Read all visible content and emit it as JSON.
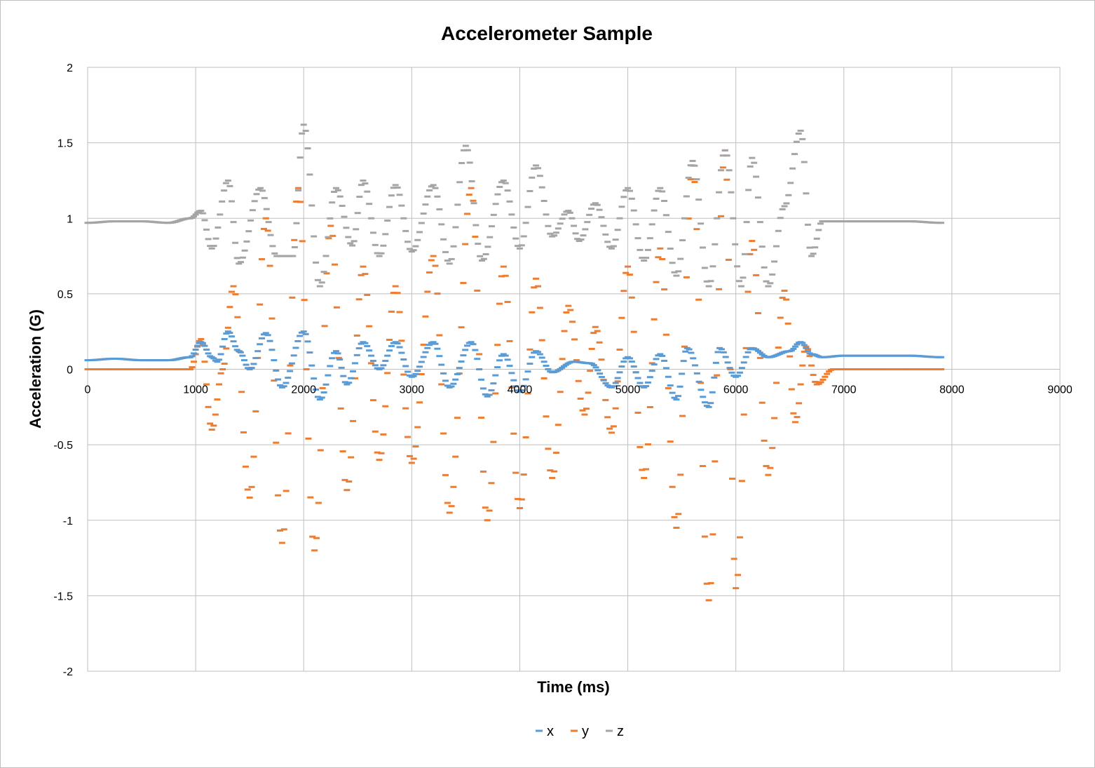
{
  "chart_data": {
    "type": "scatter",
    "title": "Accelerometer Sample",
    "xlabel": "Time (ms)",
    "ylabel": "Acceleration (G)",
    "xlim": [
      0,
      9000
    ],
    "ylim": [
      -2,
      2
    ],
    "x_ticks": [
      "0",
      "1000",
      "2000",
      "3000",
      "4000",
      "5000",
      "6000",
      "7000",
      "8000",
      "9000"
    ],
    "y_ticks": [
      "2",
      "1.5",
      "1",
      "0.5",
      "0",
      "-0.5",
      "-1",
      "-1.5",
      "-2"
    ],
    "grid": true,
    "legend_position": "bottom",
    "marker": "dash",
    "series": [
      {
        "name": "x",
        "color": "#5b9bd5",
        "points": [
          [
            0,
            0.06
          ],
          [
            250,
            0.07
          ],
          [
            500,
            0.06
          ],
          [
            750,
            0.06
          ],
          [
            950,
            0.08
          ],
          [
            1050,
            0.18
          ],
          [
            1150,
            0.08
          ],
          [
            1200,
            0.05
          ],
          [
            1300,
            0.25
          ],
          [
            1400,
            0.12
          ],
          [
            1500,
            0.0
          ],
          [
            1650,
            0.24
          ],
          [
            1800,
            -0.12
          ],
          [
            2000,
            0.25
          ],
          [
            2150,
            -0.2
          ],
          [
            2300,
            0.12
          ],
          [
            2400,
            -0.1
          ],
          [
            2550,
            0.18
          ],
          [
            2700,
            0.0
          ],
          [
            2850,
            0.18
          ],
          [
            3000,
            -0.05
          ],
          [
            3200,
            0.18
          ],
          [
            3350,
            -0.12
          ],
          [
            3550,
            0.18
          ],
          [
            3700,
            -0.18
          ],
          [
            3850,
            0.1
          ],
          [
            4000,
            -0.15
          ],
          [
            4150,
            0.12
          ],
          [
            4300,
            -0.02
          ],
          [
            4500,
            0.05
          ],
          [
            4650,
            0.04
          ],
          [
            4850,
            -0.12
          ],
          [
            5000,
            0.08
          ],
          [
            5150,
            -0.12
          ],
          [
            5300,
            0.1
          ],
          [
            5450,
            -0.2
          ],
          [
            5550,
            0.14
          ],
          [
            5750,
            -0.25
          ],
          [
            5850,
            0.14
          ],
          [
            6000,
            -0.05
          ],
          [
            6150,
            0.14
          ],
          [
            6300,
            0.08
          ],
          [
            6500,
            0.12
          ],
          [
            6600,
            0.18
          ],
          [
            6700,
            0.1
          ],
          [
            6800,
            0.08
          ],
          [
            7000,
            0.09
          ],
          [
            7300,
            0.09
          ],
          [
            7600,
            0.09
          ],
          [
            7900,
            0.08
          ]
        ]
      },
      {
        "name": "y",
        "color": "#ed7d31",
        "points": [
          [
            0,
            0.0
          ],
          [
            250,
            0.0
          ],
          [
            500,
            0.0
          ],
          [
            750,
            0.0
          ],
          [
            950,
            0.0
          ],
          [
            1050,
            0.2
          ],
          [
            1150,
            -0.4
          ],
          [
            1250,
            0.0
          ],
          [
            1350,
            0.55
          ],
          [
            1500,
            -0.85
          ],
          [
            1650,
            1.0
          ],
          [
            1800,
            -1.15
          ],
          [
            1950,
            1.2
          ],
          [
            2100,
            -1.2
          ],
          [
            2250,
            0.95
          ],
          [
            2400,
            -0.8
          ],
          [
            2550,
            0.68
          ],
          [
            2700,
            -0.6
          ],
          [
            2850,
            0.55
          ],
          [
            3000,
            -0.62
          ],
          [
            3200,
            0.75
          ],
          [
            3350,
            -0.95
          ],
          [
            3550,
            1.2
          ],
          [
            3700,
            -1.0
          ],
          [
            3850,
            0.68
          ],
          [
            4000,
            -0.92
          ],
          [
            4150,
            0.6
          ],
          [
            4300,
            -0.72
          ],
          [
            4450,
            0.42
          ],
          [
            4600,
            -0.3
          ],
          [
            4700,
            0.28
          ],
          [
            4850,
            -0.42
          ],
          [
            5000,
            0.68
          ],
          [
            5150,
            -0.72
          ],
          [
            5300,
            0.8
          ],
          [
            5450,
            -1.05
          ],
          [
            5600,
            1.35
          ],
          [
            5750,
            -1.53
          ],
          [
            5900,
            1.45
          ],
          [
            6000,
            -1.45
          ],
          [
            6150,
            0.85
          ],
          [
            6300,
            -0.7
          ],
          [
            6450,
            0.52
          ],
          [
            6550,
            -0.35
          ],
          [
            6650,
            0.15
          ],
          [
            6750,
            -0.1
          ],
          [
            6900,
            0.0
          ],
          [
            7300,
            0.0
          ],
          [
            7600,
            0.0
          ],
          [
            7900,
            0.0
          ]
        ]
      },
      {
        "name": "z",
        "color": "#a5a5a5",
        "points": [
          [
            0,
            0.97
          ],
          [
            250,
            0.98
          ],
          [
            500,
            0.98
          ],
          [
            750,
            0.97
          ],
          [
            950,
            1.0
          ],
          [
            1050,
            1.05
          ],
          [
            1150,
            0.8
          ],
          [
            1300,
            1.25
          ],
          [
            1400,
            0.7
          ],
          [
            1600,
            1.2
          ],
          [
            1750,
            0.75
          ],
          [
            1900,
            0.75
          ],
          [
            2000,
            1.62
          ],
          [
            2150,
            0.55
          ],
          [
            2300,
            1.2
          ],
          [
            2450,
            0.82
          ],
          [
            2550,
            1.25
          ],
          [
            2700,
            0.75
          ],
          [
            2850,
            1.22
          ],
          [
            3000,
            0.78
          ],
          [
            3200,
            1.22
          ],
          [
            3350,
            0.7
          ],
          [
            3500,
            1.48
          ],
          [
            3650,
            0.72
          ],
          [
            3850,
            1.25
          ],
          [
            4000,
            0.8
          ],
          [
            4150,
            1.35
          ],
          [
            4300,
            0.88
          ],
          [
            4450,
            1.05
          ],
          [
            4550,
            0.85
          ],
          [
            4700,
            1.1
          ],
          [
            4850,
            0.8
          ],
          [
            5000,
            1.2
          ],
          [
            5150,
            0.72
          ],
          [
            5300,
            1.2
          ],
          [
            5450,
            0.62
          ],
          [
            5600,
            1.38
          ],
          [
            5750,
            0.55
          ],
          [
            5900,
            1.45
          ],
          [
            6050,
            0.55
          ],
          [
            6150,
            1.4
          ],
          [
            6300,
            0.55
          ],
          [
            6450,
            1.08
          ],
          [
            6600,
            1.58
          ],
          [
            6700,
            0.75
          ],
          [
            6800,
            0.98
          ],
          [
            7000,
            0.98
          ],
          [
            7300,
            0.98
          ],
          [
            7600,
            0.98
          ],
          [
            7900,
            0.97
          ]
        ]
      }
    ]
  }
}
